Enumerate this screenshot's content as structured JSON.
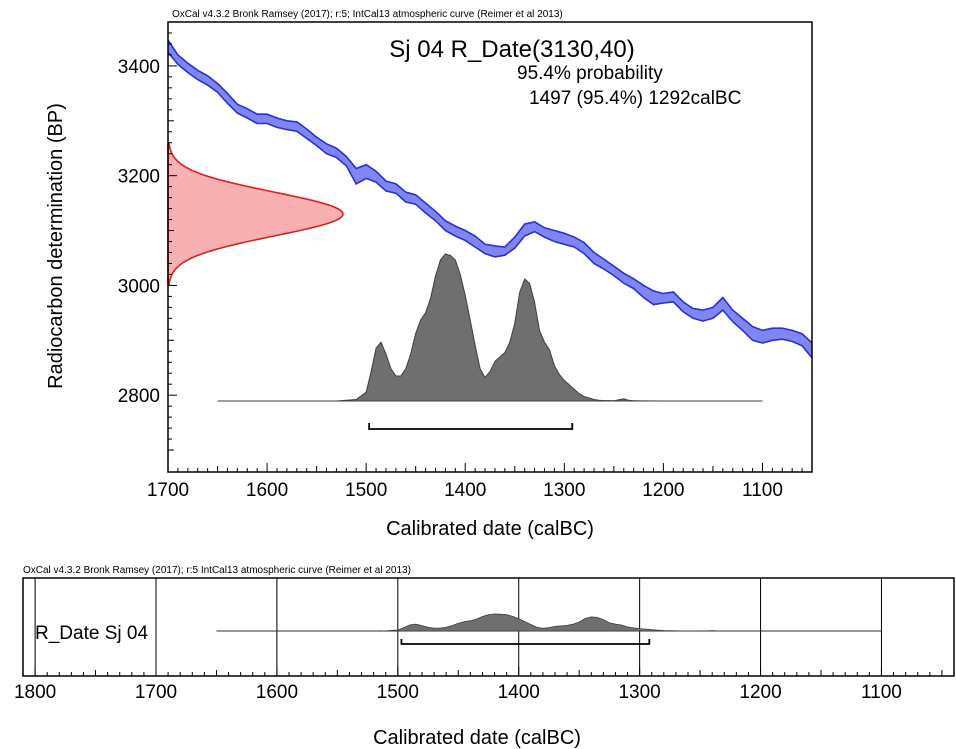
{
  "colors": {
    "curve_fill": "#7f86f2",
    "curve_line": "#2a2fd6",
    "prior_fill": "#f9b0b0",
    "prior_line": "#e01e1e",
    "posterior_fill": "#6f6f6f",
    "posterior_line": "#3f3f3f",
    "axis": "#000000"
  },
  "chart_data": [
    {
      "type": "area",
      "credit": "OxCal v4.3.2 Bronk Ramsey (2017); r:5; IntCal13 atmospheric curve (Reimer et al 2013)",
      "title": "Sj 04 R_Date(3130,40)",
      "probability_label": "95.4% probability",
      "range_label": "1497 (95.4%) 1292calBC",
      "xlabel": "Calibrated date (calBC)",
      "ylabel": "Radiocarbon determination (BP)",
      "x_reversed": true,
      "xlim": [
        1700,
        1050
      ],
      "ylim": [
        2660,
        3480
      ],
      "x_ticks": [
        "1700",
        "1600",
        "1500",
        "1400",
        "1300",
        "1200",
        "1100"
      ],
      "y_ticks": [
        "2800",
        "3000",
        "3200",
        "3400"
      ],
      "calibration_curve": {
        "x": [
          1700,
          1690,
          1680,
          1670,
          1660,
          1650,
          1640,
          1630,
          1620,
          1610,
          1600,
          1590,
          1580,
          1570,
          1560,
          1550,
          1540,
          1530,
          1520,
          1510,
          1500,
          1490,
          1480,
          1470,
          1460,
          1450,
          1440,
          1430,
          1420,
          1410,
          1400,
          1390,
          1380,
          1370,
          1360,
          1350,
          1340,
          1330,
          1320,
          1310,
          1300,
          1290,
          1280,
          1270,
          1260,
          1250,
          1240,
          1230,
          1220,
          1210,
          1200,
          1190,
          1180,
          1170,
          1160,
          1150,
          1140,
          1130,
          1120,
          1110,
          1100,
          1090,
          1080,
          1070,
          1060,
          1050
        ],
        "upper": [
          3447,
          3420,
          3405,
          3392,
          3382,
          3368,
          3350,
          3330,
          3322,
          3312,
          3312,
          3305,
          3300,
          3298,
          3285,
          3270,
          3258,
          3250,
          3235,
          3213,
          3220,
          3208,
          3190,
          3185,
          3170,
          3165,
          3150,
          3135,
          3118,
          3108,
          3100,
          3090,
          3075,
          3072,
          3070,
          3088,
          3112,
          3116,
          3105,
          3100,
          3095,
          3088,
          3078,
          3060,
          3048,
          3035,
          3022,
          3012,
          3000,
          2990,
          2985,
          2988,
          2970,
          2958,
          2955,
          2960,
          2978,
          2955,
          2940,
          2925,
          2918,
          2922,
          2922,
          2918,
          2912,
          2895
        ],
        "lower": [
          3425,
          3403,
          3388,
          3375,
          3365,
          3352,
          3332,
          3314,
          3305,
          3295,
          3295,
          3288,
          3284,
          3281,
          3268,
          3255,
          3240,
          3233,
          3218,
          3185,
          3195,
          3188,
          3172,
          3168,
          3152,
          3148,
          3132,
          3118,
          3100,
          3090,
          3082,
          3070,
          3058,
          3052,
          3055,
          3068,
          3090,
          3098,
          3088,
          3080,
          3075,
          3070,
          3058,
          3040,
          3030,
          3018,
          3004,
          2994,
          2978,
          2965,
          2968,
          2970,
          2952,
          2940,
          2935,
          2940,
          2955,
          2934,
          2918,
          2900,
          2895,
          2900,
          2902,
          2898,
          2890,
          2868
        ]
      },
      "radiocarbon_date": {
        "mean": 3130,
        "sigma": 40
      },
      "posterior": {
        "x": [
          1650,
          1530,
          1510,
          1500,
          1495,
          1490,
          1485,
          1480,
          1475,
          1470,
          1465,
          1460,
          1455,
          1450,
          1445,
          1440,
          1435,
          1430,
          1425,
          1420,
          1415,
          1410,
          1405,
          1400,
          1395,
          1390,
          1385,
          1380,
          1375,
          1370,
          1365,
          1360,
          1355,
          1350,
          1345,
          1340,
          1335,
          1330,
          1325,
          1320,
          1315,
          1310,
          1305,
          1300,
          1295,
          1290,
          1285,
          1280,
          1275,
          1270,
          1265,
          1260,
          1255,
          1250,
          1240,
          1235,
          1230,
          1220,
          1200,
          1150,
          1100
        ],
        "density": [
          0,
          0,
          0.01,
          0.06,
          0.2,
          0.36,
          0.4,
          0.32,
          0.22,
          0.17,
          0.17,
          0.22,
          0.32,
          0.46,
          0.55,
          0.6,
          0.7,
          0.85,
          0.96,
          1.0,
          0.99,
          0.96,
          0.86,
          0.72,
          0.55,
          0.38,
          0.22,
          0.16,
          0.2,
          0.27,
          0.3,
          0.33,
          0.4,
          0.53,
          0.74,
          0.83,
          0.8,
          0.67,
          0.48,
          0.4,
          0.35,
          0.24,
          0.18,
          0.14,
          0.11,
          0.08,
          0.05,
          0.03,
          0.02,
          0.01,
          0.005,
          0.003,
          0.003,
          0.002,
          0.015,
          0.005,
          0.002,
          0.001,
          0,
          0,
          0
        ]
      },
      "range_95": [
        1497,
        1292
      ]
    },
    {
      "type": "area",
      "credit": "OxCal v4.3.2 Bronk Ramsey (2017); r:5 IntCal13 atmospheric curve (Reimer et al 2013)",
      "row_label": "R_Date Sj 04",
      "xlabel": "Calibrated date (calBC)",
      "x_reversed": true,
      "xlim": [
        1810,
        1040
      ],
      "x_ticks": [
        "1800",
        "1700",
        "1600",
        "1500",
        "1400",
        "1300",
        "1200",
        "1100"
      ],
      "baseline_span": [
        1650,
        1100
      ],
      "range_95": [
        1497,
        1292
      ]
    }
  ]
}
